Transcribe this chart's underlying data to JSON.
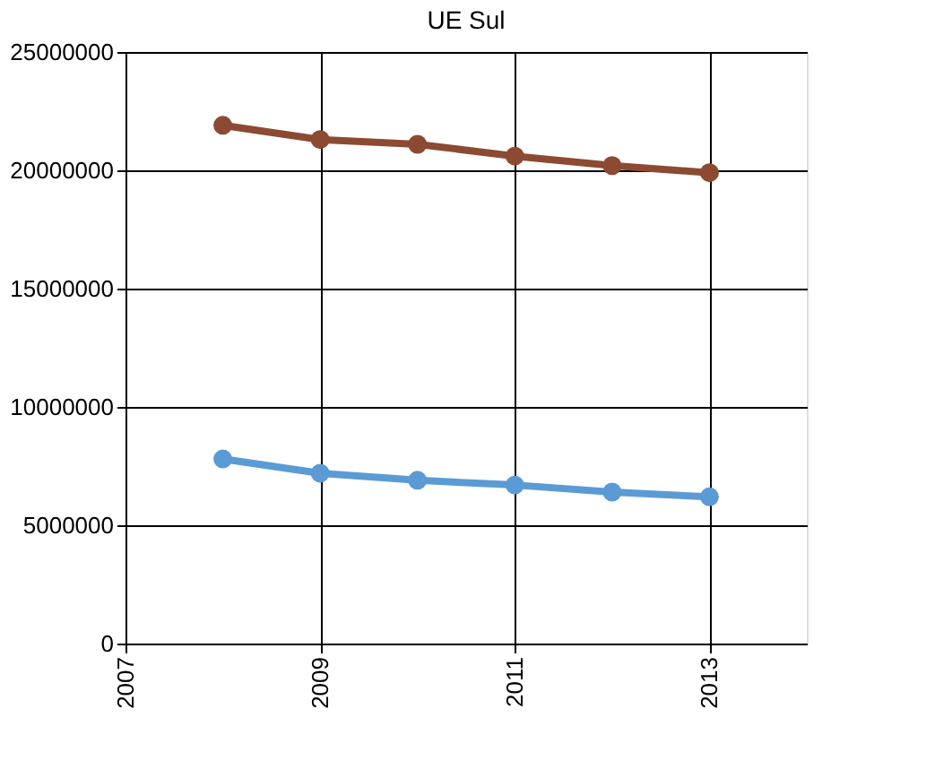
{
  "chart_data": {
    "type": "line",
    "title": "UE Sul",
    "x": [
      2008,
      2009,
      2010,
      2011,
      2012,
      2013
    ],
    "series": [
      {
        "color": "#8c4a32",
        "values": [
          21900000,
          21300000,
          21100000,
          20600000,
          20200000,
          19900000
        ]
      },
      {
        "color": "#5b9bd5",
        "values": [
          7800000,
          7200000,
          6900000,
          6700000,
          6400000,
          6200000
        ]
      }
    ],
    "xlim": [
      2007,
      2014
    ],
    "xticks": [
      2007,
      2009,
      2011,
      2013
    ],
    "ylim": [
      0,
      25000000
    ],
    "yticks": [
      0,
      5000000,
      10000000,
      15000000,
      20000000,
      25000000
    ],
    "grid": true,
    "marker": "circle",
    "line_style": "solid"
  }
}
